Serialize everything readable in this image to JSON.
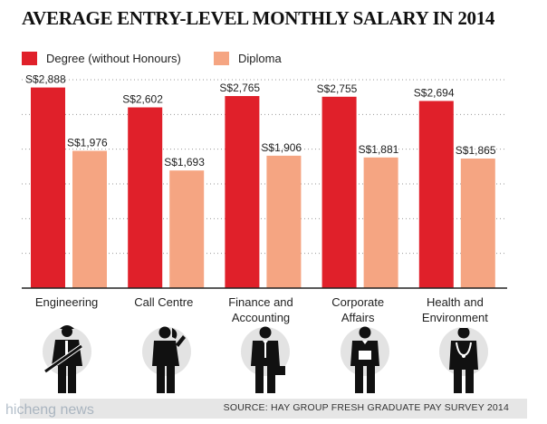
{
  "title": "AVERAGE ENTRY-LEVEL MONTHLY SALARY IN 2014",
  "source": "SOURCE: HAY GROUP FRESH GRADUATE PAY SURVEY 2014",
  "watermark": "hicheng news",
  "colors": {
    "degree": "#e0202a",
    "diploma": "#f5a582",
    "grid": "#9a9a9a",
    "axis": "#222222",
    "icon_circle": "#e3e3e3",
    "icon_figure": "#111111"
  },
  "icons": [
    "engineer-figure-icon",
    "call-centre-figure-icon",
    "finance-figure-icon",
    "corporate-affairs-figure-icon",
    "healthcare-figure-icon"
  ],
  "chart_data": {
    "type": "bar",
    "title": "AVERAGE ENTRY-LEVEL MONTHLY SALARY IN 2014",
    "categories": [
      "Engineering",
      "Call Centre",
      "Finance and Accounting",
      "Corporate Affairs",
      "Health and Environment"
    ],
    "category_lines": [
      [
        "Engineering"
      ],
      [
        "Call Centre"
      ],
      [
        "Finance and",
        "Accounting"
      ],
      [
        "Corporate",
        "Affairs"
      ],
      [
        "Health and",
        "Environment"
      ]
    ],
    "series": [
      {
        "name": "Degree (without Honours)",
        "values": [
          2888,
          2602,
          2765,
          2755,
          2694
        ],
        "labels": [
          "S$2,888",
          "S$2,602",
          "S$2,765",
          "S$2,755",
          "S$2,694"
        ]
      },
      {
        "name": "Diploma",
        "values": [
          1976,
          1693,
          1906,
          1881,
          1865
        ],
        "labels": [
          "S$1,976",
          "S$1,693",
          "S$1,906",
          "S$1,881",
          "S$1,865"
        ]
      }
    ],
    "ylim": [
      0,
      3000
    ],
    "grid": true,
    "legend": "top-left"
  }
}
